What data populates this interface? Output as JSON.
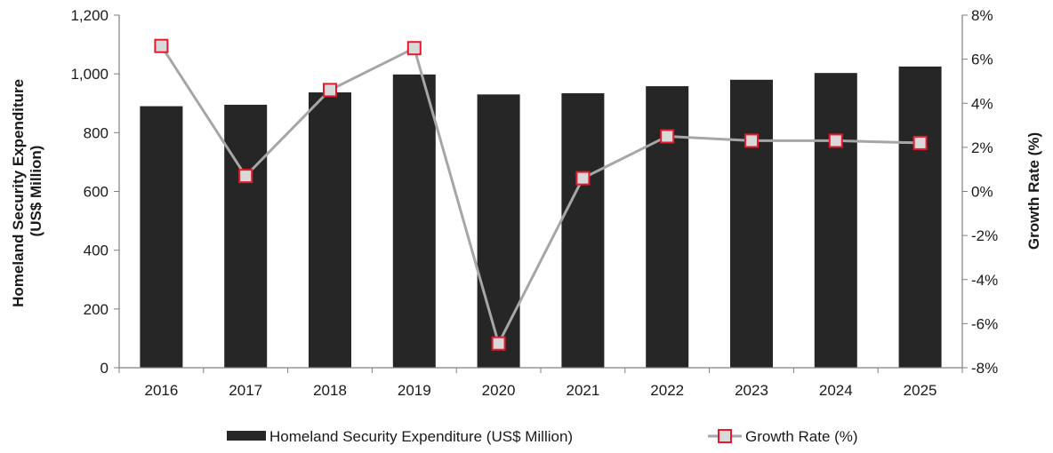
{
  "chart_data": {
    "type": "bar",
    "categories": [
      "2016",
      "2017",
      "2018",
      "2019",
      "2020",
      "2021",
      "2022",
      "2023",
      "2024",
      "2025"
    ],
    "ylabel": "Homeland Security Expenditure\n(US$ Million)",
    "ylabel_line1": "Homeland Security Expenditure",
    "ylabel_line2": "(US$ Million)",
    "y2label": "Growth Rate (%)",
    "ylim": [
      0,
      1200
    ],
    "y2lim": [
      -8,
      8
    ],
    "yticks": [
      "0",
      "200",
      "400",
      "600",
      "800",
      "1,000",
      "1,200"
    ],
    "y2ticks": [
      "-8%",
      "-6%",
      "-4%",
      "-2%",
      "0%",
      "2%",
      "4%",
      "6%",
      "8%"
    ],
    "grid": false,
    "legend_position": "bottom",
    "series": [
      {
        "name": "Homeland Security Expenditure (US$ Million)",
        "type": "bar",
        "axis": "left",
        "color": "#262626",
        "values": [
          890,
          895,
          937,
          998,
          930,
          934,
          958,
          980,
          1003,
          1025
        ]
      },
      {
        "name": "Growth Rate (%)",
        "type": "line",
        "axis": "right",
        "line_color": "#a6a6a6",
        "marker_edge_color": "#e8192c",
        "marker_fill_color": "#d9d9d9",
        "values": [
          6.6,
          0.7,
          4.6,
          6.5,
          -6.9,
          0.6,
          2.5,
          2.3,
          2.3,
          2.2
        ]
      }
    ]
  }
}
